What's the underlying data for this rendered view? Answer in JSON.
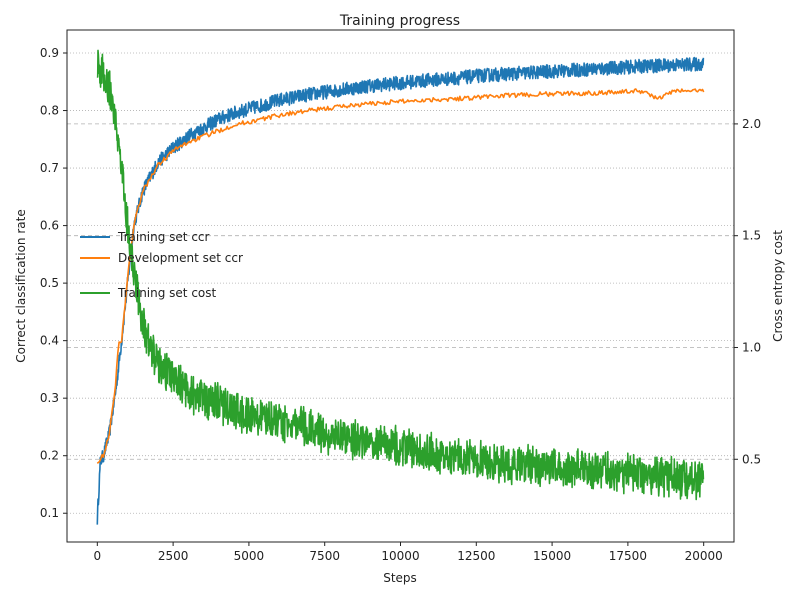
{
  "chart_data": {
    "type": "line",
    "title": "Training progress",
    "xlabel": "Steps",
    "ylabel_left": "Correct classification rate",
    "ylabel_right": "Cross entropy cost",
    "xlim": [
      -1000,
      21000
    ],
    "ylim_left": [
      0.05,
      0.94
    ],
    "ylim_right": [
      0.13,
      2.42
    ],
    "x_ticks": [
      0,
      2500,
      5000,
      7500,
      10000,
      12500,
      15000,
      17500,
      20000
    ],
    "x_tick_labels": [
      "0",
      "2500",
      "5000",
      "7500",
      "10000",
      "12500",
      "15000",
      "17500",
      "20000"
    ],
    "y_left_ticks": [
      0.1,
      0.2,
      0.3,
      0.4,
      0.5,
      0.6,
      0.7,
      0.8,
      0.9
    ],
    "y_left_tick_labels": [
      "0.1",
      "0.2",
      "0.3",
      "0.4",
      "0.5",
      "0.6",
      "0.7",
      "0.8",
      "0.9"
    ],
    "y_right_ticks": [
      0.5,
      1.0,
      1.5,
      2.0
    ],
    "y_right_tick_labels": [
      "0.5",
      "1.0",
      "1.5",
      "2.0"
    ],
    "grid": {
      "left_axis": "dotted",
      "right_axis": "dashed"
    },
    "legend_placement": "center-left",
    "series": [
      {
        "name": "Training set ccr",
        "axis": "left",
        "color": "#1f77b4",
        "x": [
          0,
          100,
          200,
          400,
          600,
          800,
          1000,
          1200,
          1500,
          2000,
          2500,
          3000,
          3500,
          4000,
          4500,
          5000,
          5500,
          6000,
          7000,
          7500,
          8000,
          9000,
          10000,
          11000,
          12000,
          12500,
          13000,
          14000,
          15000,
          16000,
          17000,
          18000,
          19000,
          20000
        ],
        "values": [
          0.09,
          0.19,
          0.2,
          0.24,
          0.31,
          0.4,
          0.5,
          0.6,
          0.66,
          0.71,
          0.735,
          0.755,
          0.77,
          0.785,
          0.795,
          0.803,
          0.81,
          0.818,
          0.828,
          0.832,
          0.836,
          0.843,
          0.848,
          0.853,
          0.857,
          0.86,
          0.862,
          0.865,
          0.868,
          0.871,
          0.874,
          0.877,
          0.879,
          0.881
        ],
        "noise_amplitude": 0.012
      },
      {
        "name": "Development set ccr",
        "axis": "left",
        "color": "#ff7f0e",
        "x": [
          0,
          200,
          400,
          600,
          700,
          800,
          1000,
          1200,
          1500,
          2000,
          2500,
          3000,
          3500,
          4000,
          4500,
          5000,
          6000,
          7000,
          7500,
          8000,
          9000,
          10000,
          11000,
          12000,
          12500,
          13000,
          14000,
          15000,
          16000,
          17000,
          18000,
          18500,
          19000,
          20000
        ],
        "values": [
          0.19,
          0.2,
          0.24,
          0.32,
          0.4,
          0.4,
          0.51,
          0.6,
          0.66,
          0.705,
          0.73,
          0.745,
          0.755,
          0.765,
          0.775,
          0.78,
          0.792,
          0.8,
          0.803,
          0.807,
          0.812,
          0.816,
          0.819,
          0.821,
          0.823,
          0.825,
          0.827,
          0.829,
          0.83,
          0.832,
          0.834,
          0.82,
          0.834,
          0.835
        ],
        "noise_amplitude": 0.004
      },
      {
        "name": "Training set cost",
        "axis": "right",
        "color": "#2ca02c",
        "x": [
          0,
          200,
          400,
          600,
          800,
          1000,
          1200,
          1500,
          2000,
          2500,
          3000,
          4000,
          5000,
          6000,
          7000,
          7500,
          8000,
          9000,
          10000,
          11000,
          12000,
          12500,
          13000,
          14000,
          15000,
          16000,
          17000,
          18000,
          19000,
          20000
        ],
        "values": [
          2.27,
          2.22,
          2.15,
          2.0,
          1.8,
          1.55,
          1.35,
          1.1,
          0.92,
          0.87,
          0.8,
          0.75,
          0.7,
          0.67,
          0.64,
          0.62,
          0.6,
          0.58,
          0.55,
          0.53,
          0.51,
          0.5,
          0.49,
          0.48,
          0.47,
          0.45,
          0.44,
          0.43,
          0.42,
          0.41
        ],
        "noise_amplitude": 0.1
      }
    ]
  }
}
